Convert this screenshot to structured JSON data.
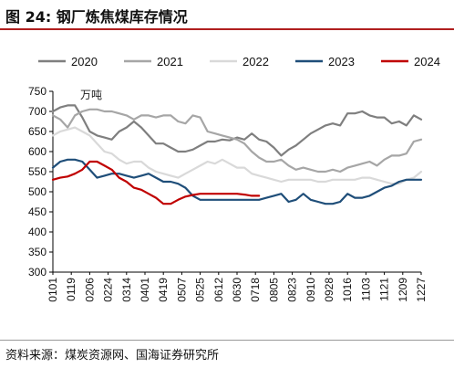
{
  "figure": {
    "title": "图 24:  钢厂炼焦煤库存情况",
    "source": "资料来源：煤炭资源网、国海证券研究所"
  },
  "chart_data": {
    "type": "line",
    "unit_label": "万吨",
    "ylim": [
      300,
      750
    ],
    "yticks": [
      300,
      350,
      400,
      450,
      500,
      550,
      600,
      650,
      700,
      750
    ],
    "x_tick_labels": [
      "0101",
      "0119",
      "0206",
      "0224",
      "0314",
      "0401",
      "0419",
      "0507",
      "0525",
      "0612",
      "0630",
      "0718",
      "0805",
      "0823",
      "0910",
      "0928",
      "1016",
      "1103",
      "1121",
      "1209",
      "1227"
    ],
    "legend_position": "top",
    "grid": false,
    "series": [
      {
        "name": "2020",
        "color": "#7f7f7f",
        "values": [
          700,
          710,
          715,
          715,
          685,
          650,
          640,
          635,
          630,
          650,
          660,
          675,
          660,
          640,
          620,
          620,
          610,
          600,
          600,
          605,
          615,
          625,
          625,
          630,
          628,
          635,
          630,
          645,
          630,
          625,
          610,
          590,
          605,
          615,
          630,
          645,
          655,
          665,
          670,
          665,
          695,
          695,
          700,
          690,
          685,
          685,
          670,
          675,
          665,
          690,
          680
        ]
      },
      {
        "name": "2021",
        "color": "#a6a6a6",
        "values": [
          690,
          680,
          660,
          690,
          700,
          705,
          705,
          700,
          700,
          695,
          690,
          680,
          690,
          690,
          685,
          690,
          690,
          675,
          670,
          690,
          685,
          650,
          645,
          640,
          635,
          630,
          620,
          600,
          585,
          575,
          575,
          580,
          565,
          555,
          560,
          555,
          550,
          550,
          555,
          550,
          560,
          565,
          570,
          575,
          565,
          580,
          590,
          590,
          595,
          625,
          630
        ]
      },
      {
        "name": "2022",
        "color": "#d9d9d9",
        "values": [
          640,
          650,
          655,
          660,
          650,
          640,
          620,
          600,
          595,
          580,
          570,
          575,
          575,
          560,
          550,
          545,
          540,
          535,
          545,
          555,
          565,
          575,
          570,
          580,
          570,
          560,
          560,
          545,
          540,
          535,
          530,
          525,
          530,
          530,
          530,
          530,
          525,
          525,
          530,
          530,
          530,
          530,
          535,
          535,
          530,
          525,
          520,
          520,
          530,
          535,
          550
        ]
      },
      {
        "name": "2023",
        "color": "#1f4e79",
        "values": [
          560,
          575,
          580,
          580,
          575,
          555,
          535,
          540,
          545,
          545,
          540,
          535,
          540,
          545,
          535,
          525,
          525,
          520,
          510,
          490,
          480,
          480,
          480,
          480,
          480,
          480,
          480,
          480,
          480,
          485,
          490,
          495,
          475,
          480,
          495,
          480,
          475,
          470,
          470,
          475,
          495,
          485,
          485,
          490,
          500,
          510,
          515,
          525,
          530,
          530,
          530
        ]
      },
      {
        "name": "2024",
        "color": "#c00000",
        "values": [
          530,
          535,
          538,
          545,
          555,
          575,
          575,
          565,
          555,
          535,
          525,
          510,
          505,
          495,
          485,
          470,
          470,
          480,
          488,
          492,
          495,
          495,
          495,
          495,
          495,
          495,
          493,
          490,
          490
        ]
      }
    ]
  }
}
